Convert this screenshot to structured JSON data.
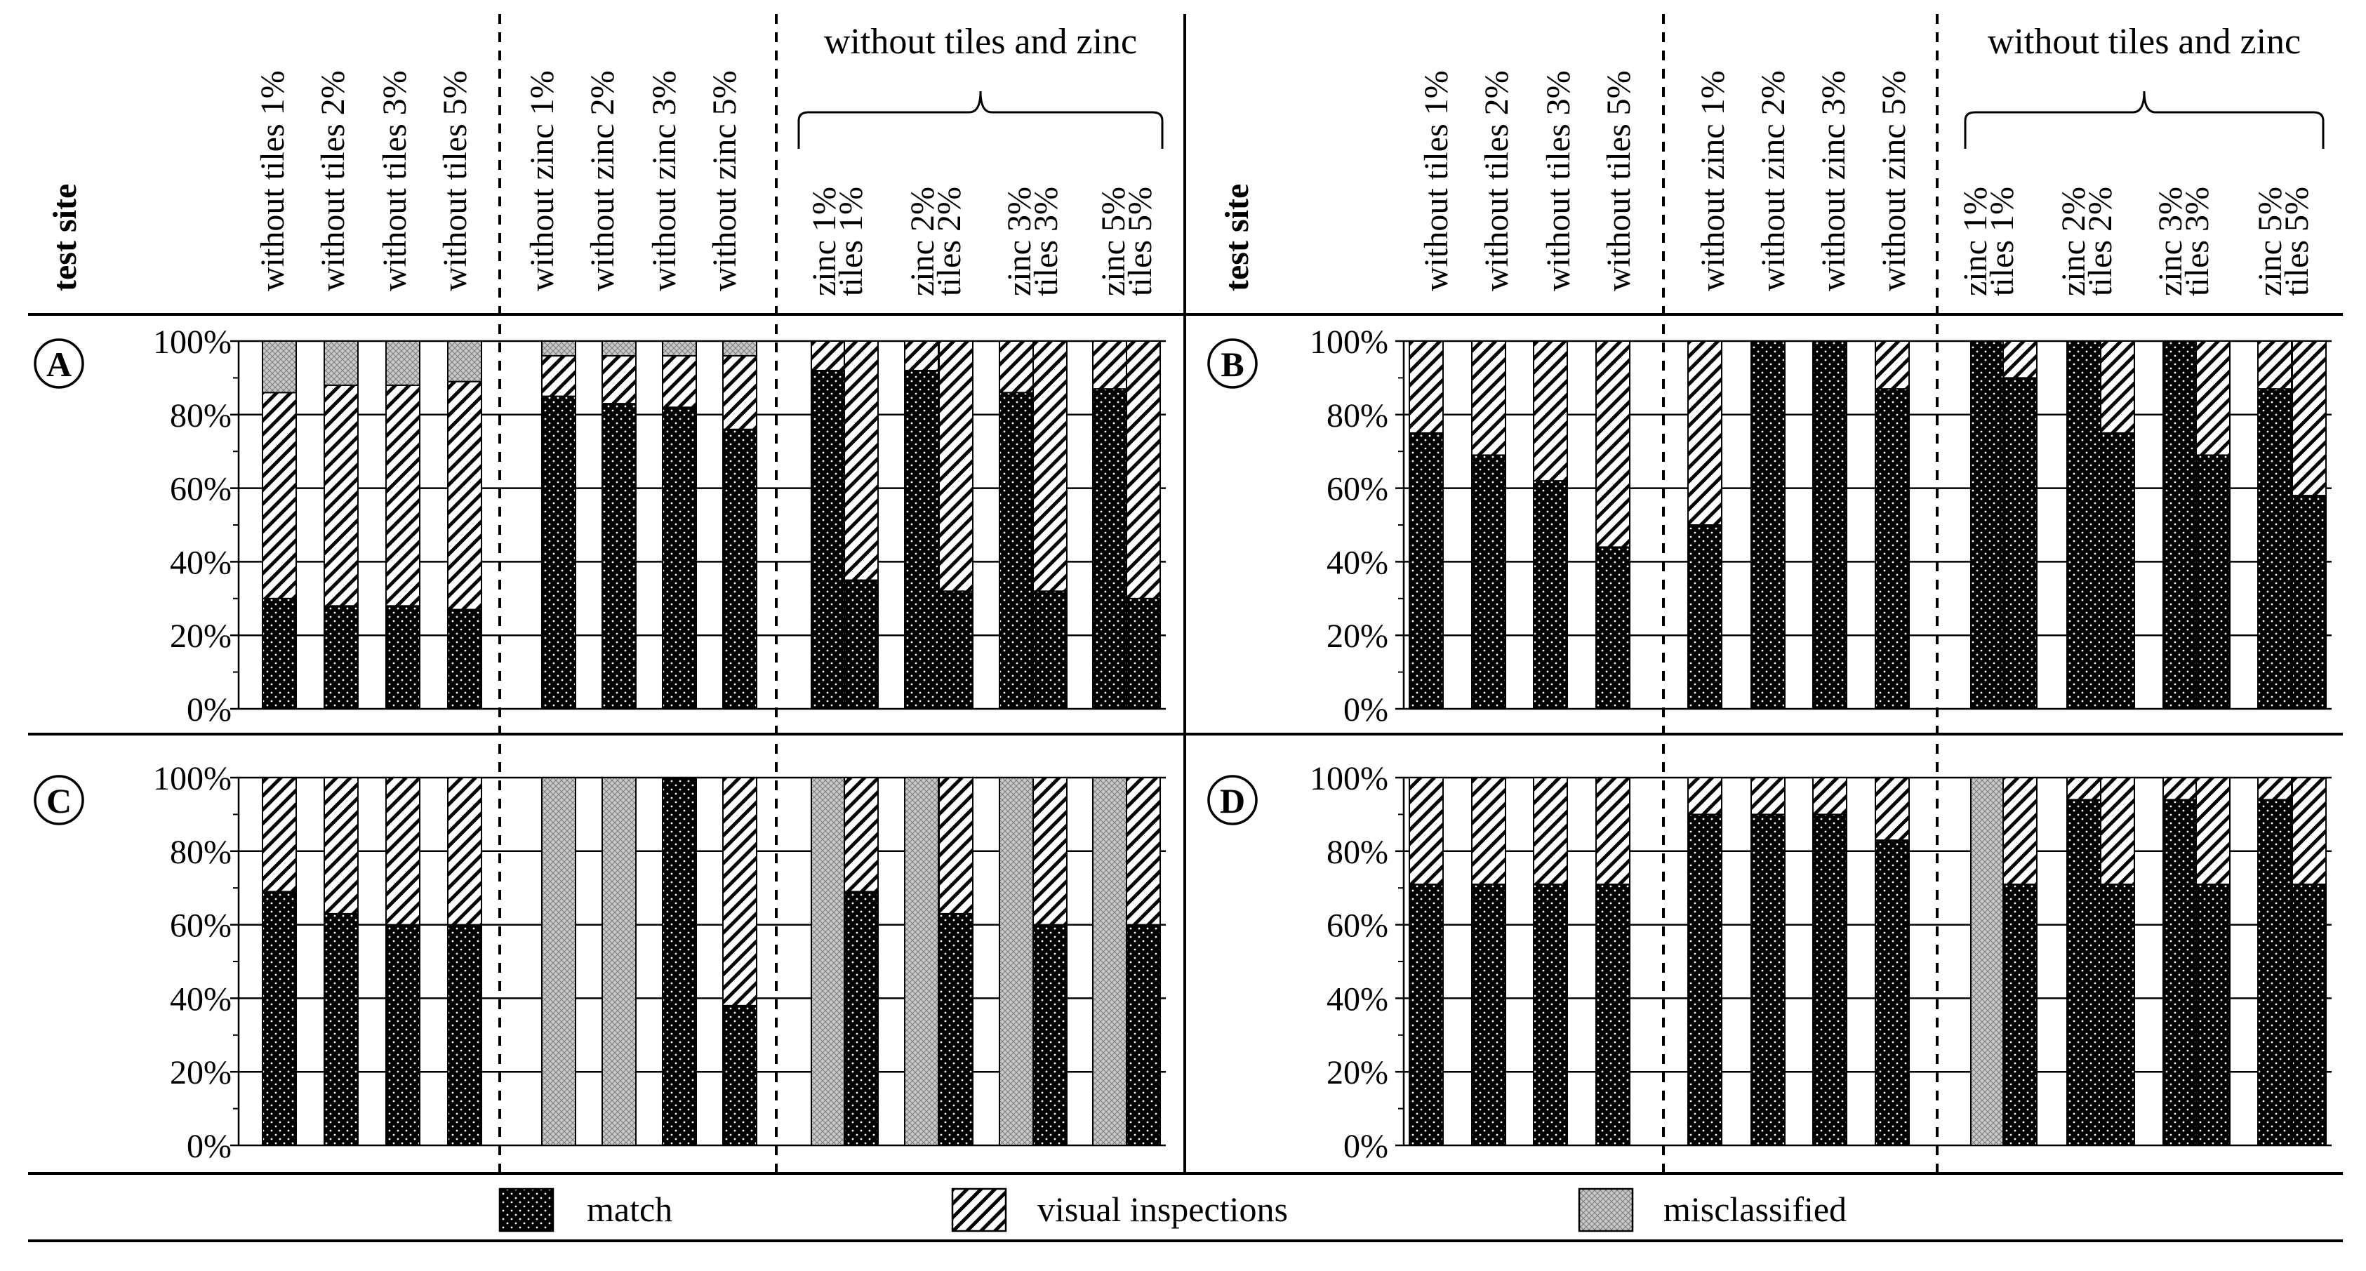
{
  "figure": {
    "header_label": "test site",
    "group_label": "without tiles and zinc",
    "column_labels": [
      [
        "without tiles 1%"
      ],
      [
        "without tiles 2%"
      ],
      [
        "without tiles 3%"
      ],
      [
        "without tiles 5%"
      ],
      [
        "without zinc 1%"
      ],
      [
        "without zinc 2%"
      ],
      [
        "without zinc 3%"
      ],
      [
        "without zinc 5%"
      ],
      [
        "zinc 1%",
        "tiles 1%"
      ],
      [
        "zinc 2%",
        "tiles 2%"
      ],
      [
        "zinc 3%",
        "tiles 3%"
      ],
      [
        "zinc 5%",
        "tiles 5%"
      ]
    ],
    "y_ticks": [
      "0%",
      "20%",
      "40%",
      "60%",
      "80%",
      "100%"
    ],
    "legend": [
      {
        "key": "match",
        "label": "match"
      },
      {
        "key": "visual",
        "label": "visual inspections"
      },
      {
        "key": "mis",
        "label": "misclassified"
      }
    ]
  },
  "chart_data": [
    {
      "type": "bar",
      "stacked": true,
      "panel": "A",
      "ylim": [
        0,
        100
      ],
      "yunit": "%",
      "categories": [
        "without tiles 1%",
        "without tiles 2%",
        "without tiles 3%",
        "without tiles 5%",
        "without zinc 1%",
        "without zinc 2%",
        "without zinc 3%",
        "without zinc 5%",
        "zinc 1%",
        "tiles 1%",
        "zinc 2%",
        "tiles 2%",
        "zinc 3%",
        "tiles 3%",
        "zinc 5%",
        "tiles 5%"
      ],
      "series": [
        {
          "name": "match",
          "values": [
            30,
            28,
            28,
            27,
            85,
            83,
            82,
            76,
            92,
            35,
            92,
            32,
            86,
            32,
            87,
            30
          ]
        },
        {
          "name": "visual inspections",
          "values": [
            56,
            60,
            60,
            62,
            11,
            13,
            14,
            20,
            8,
            65,
            8,
            68,
            14,
            68,
            13,
            70
          ]
        },
        {
          "name": "misclassified",
          "values": [
            14,
            12,
            12,
            11,
            4,
            4,
            4,
            4,
            0,
            0,
            0,
            0,
            0,
            0,
            0,
            0
          ]
        }
      ]
    },
    {
      "type": "bar",
      "stacked": true,
      "panel": "B",
      "ylim": [
        0,
        100
      ],
      "yunit": "%",
      "categories": [
        "without tiles 1%",
        "without tiles 2%",
        "without tiles 3%",
        "without tiles 5%",
        "without zinc 1%",
        "without zinc 2%",
        "without zinc 3%",
        "without zinc 5%",
        "zinc 1%",
        "tiles 1%",
        "zinc 2%",
        "tiles 2%",
        "zinc 3%",
        "tiles 3%",
        "zinc 5%",
        "tiles 5%"
      ],
      "series": [
        {
          "name": "match",
          "values": [
            75,
            69,
            62,
            44,
            50,
            100,
            100,
            87,
            100,
            90,
            100,
            75,
            100,
            69,
            87,
            58
          ]
        },
        {
          "name": "visual inspections",
          "values": [
            25,
            31,
            38,
            56,
            50,
            0,
            0,
            13,
            0,
            10,
            0,
            25,
            0,
            31,
            13,
            42
          ]
        },
        {
          "name": "misclassified",
          "values": [
            0,
            0,
            0,
            0,
            0,
            0,
            0,
            0,
            0,
            0,
            0,
            0,
            0,
            0,
            0,
            0
          ]
        }
      ]
    },
    {
      "type": "bar",
      "stacked": true,
      "panel": "C",
      "ylim": [
        0,
        100
      ],
      "yunit": "%",
      "categories": [
        "without tiles 1%",
        "without tiles 2%",
        "without tiles 3%",
        "without tiles 5%",
        "without zinc 1%",
        "without zinc 2%",
        "without zinc 3%",
        "without zinc 5%",
        "zinc 1%",
        "tiles 1%",
        "zinc 2%",
        "tiles 2%",
        "zinc 3%",
        "tiles 3%",
        "zinc 5%",
        "tiles 5%"
      ],
      "series": [
        {
          "name": "match",
          "values": [
            69,
            63,
            60,
            60,
            0,
            0,
            100,
            38,
            0,
            69,
            0,
            63,
            0,
            60,
            0,
            60
          ]
        },
        {
          "name": "visual inspections",
          "values": [
            31,
            37,
            40,
            40,
            0,
            0,
            0,
            62,
            0,
            31,
            0,
            37,
            0,
            40,
            0,
            40
          ]
        },
        {
          "name": "misclassified",
          "values": [
            0,
            0,
            0,
            0,
            100,
            100,
            0,
            0,
            100,
            0,
            100,
            0,
            100,
            0,
            100,
            0
          ]
        }
      ]
    },
    {
      "type": "bar",
      "stacked": true,
      "panel": "D",
      "ylim": [
        0,
        100
      ],
      "yunit": "%",
      "categories": [
        "without tiles 1%",
        "without tiles 2%",
        "without tiles 3%",
        "without tiles 5%",
        "without zinc 1%",
        "without zinc 2%",
        "without zinc 3%",
        "without zinc 5%",
        "zinc 1%",
        "tiles 1%",
        "zinc 2%",
        "tiles 2%",
        "zinc 3%",
        "tiles 3%",
        "zinc 5%",
        "tiles 5%"
      ],
      "series": [
        {
          "name": "match",
          "values": [
            71,
            71,
            71,
            71,
            90,
            90,
            90,
            83,
            0,
            71,
            94,
            71,
            94,
            71,
            94,
            71
          ]
        },
        {
          "name": "visual inspections",
          "values": [
            29,
            29,
            29,
            29,
            10,
            10,
            10,
            17,
            0,
            29,
            6,
            29,
            6,
            29,
            6,
            29
          ]
        },
        {
          "name": "misclassified",
          "values": [
            0,
            0,
            0,
            0,
            0,
            0,
            0,
            0,
            100,
            0,
            0,
            0,
            0,
            0,
            0,
            0
          ]
        }
      ]
    }
  ]
}
